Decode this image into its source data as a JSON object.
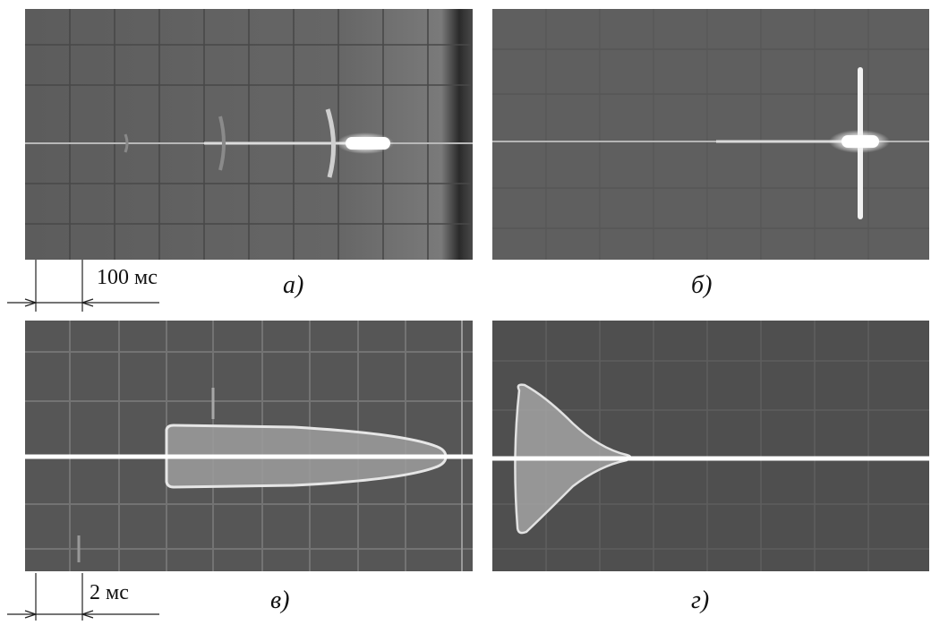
{
  "figure": {
    "panels": [
      {
        "id": "a",
        "caption": "а)"
      },
      {
        "id": "b",
        "caption": "б)"
      },
      {
        "id": "v",
        "caption": "в)"
      },
      {
        "id": "g",
        "caption": "г)"
      }
    ],
    "scale_top": "100 мс",
    "scale_bottom": "2 мс"
  }
}
